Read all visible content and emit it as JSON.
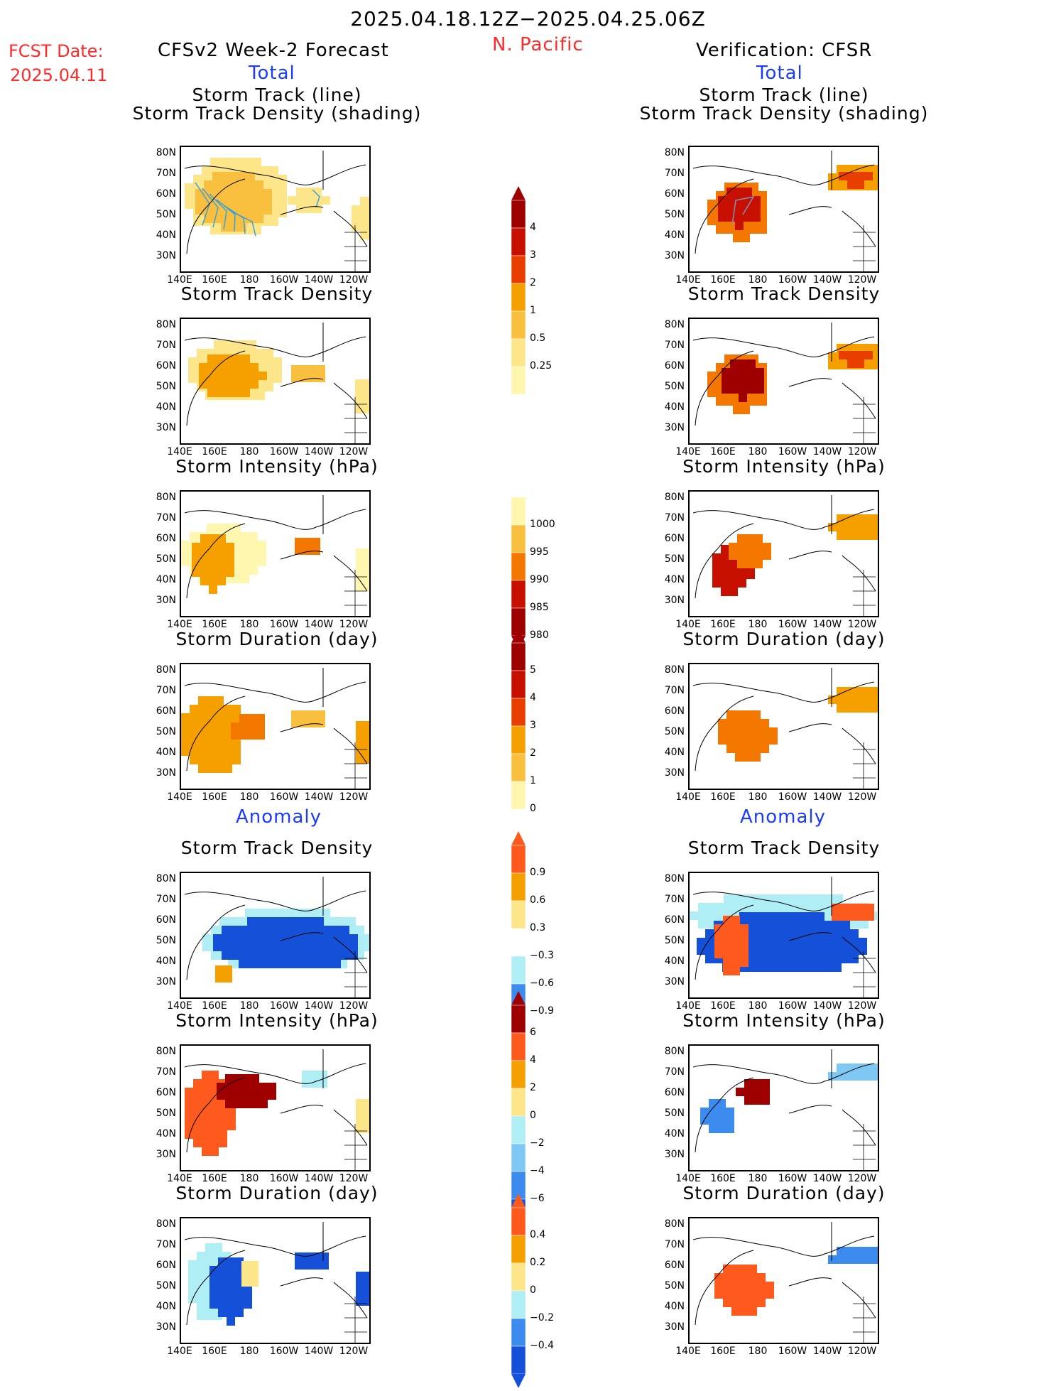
{
  "header": {
    "date_range": "2025.04.18.12Z−2025.04.25.06Z",
    "region": "N. Pacific",
    "fcst_label": "FCST Date:",
    "fcst_date": "2025.04.11",
    "left_title": "CFSv2 Week-2 Forecast",
    "right_title": "Verification: CFSR",
    "total_label": "Total",
    "anomaly_label": "Anomaly"
  },
  "panel_titles": {
    "storm_track_line": "Storm Track (line)",
    "storm_track_density_shading": "Storm Track Density (shading)",
    "storm_track_density": "Storm Track Density",
    "storm_intensity": "Storm Intensity (hPa)",
    "storm_duration": "Storm Duration (day)"
  },
  "axes": {
    "lat_ticks": [
      "80N",
      "70N",
      "60N",
      "50N",
      "40N",
      "30N"
    ],
    "lon_ticks": [
      "140E",
      "160E",
      "180",
      "160W",
      "140W",
      "120W"
    ]
  },
  "colorbars": {
    "density_total": {
      "labels": [
        "4",
        "3",
        "2",
        "1",
        "0.5",
        "0.25"
      ]
    },
    "intensity_total": {
      "labels": [
        "1000",
        "995",
        "990",
        "985",
        "980"
      ]
    },
    "duration_total": {
      "labels": [
        "5",
        "4",
        "3",
        "2",
        "1",
        "0"
      ]
    },
    "density_anom": {
      "labels": [
        "0.9",
        "0.6",
        "0.3",
        "−0.3",
        "−0.6",
        "−0.9"
      ]
    },
    "intensity_anom": {
      "labels": [
        "6",
        "4",
        "2",
        "0",
        "−2",
        "−4",
        "−6"
      ]
    },
    "duration_anom": {
      "labels": [
        "0.4",
        "0.2",
        "0",
        "−0.2",
        "−0.4"
      ]
    }
  },
  "colors": {
    "total_warm": [
      "#fff6b0",
      "#fde58a",
      "#f9c040",
      "#f6a000",
      "#f47800",
      "#e83e00",
      "#c81000",
      "#9e0000"
    ],
    "anom_warm": [
      "#fde58a",
      "#f6a000",
      "#ff5a1e",
      "#9e0000"
    ],
    "anom_cool": [
      "#b0eef6",
      "#80c8f4",
      "#3c8cf0",
      "#1450d8"
    ],
    "track_line": "#3aa0d8"
  }
}
